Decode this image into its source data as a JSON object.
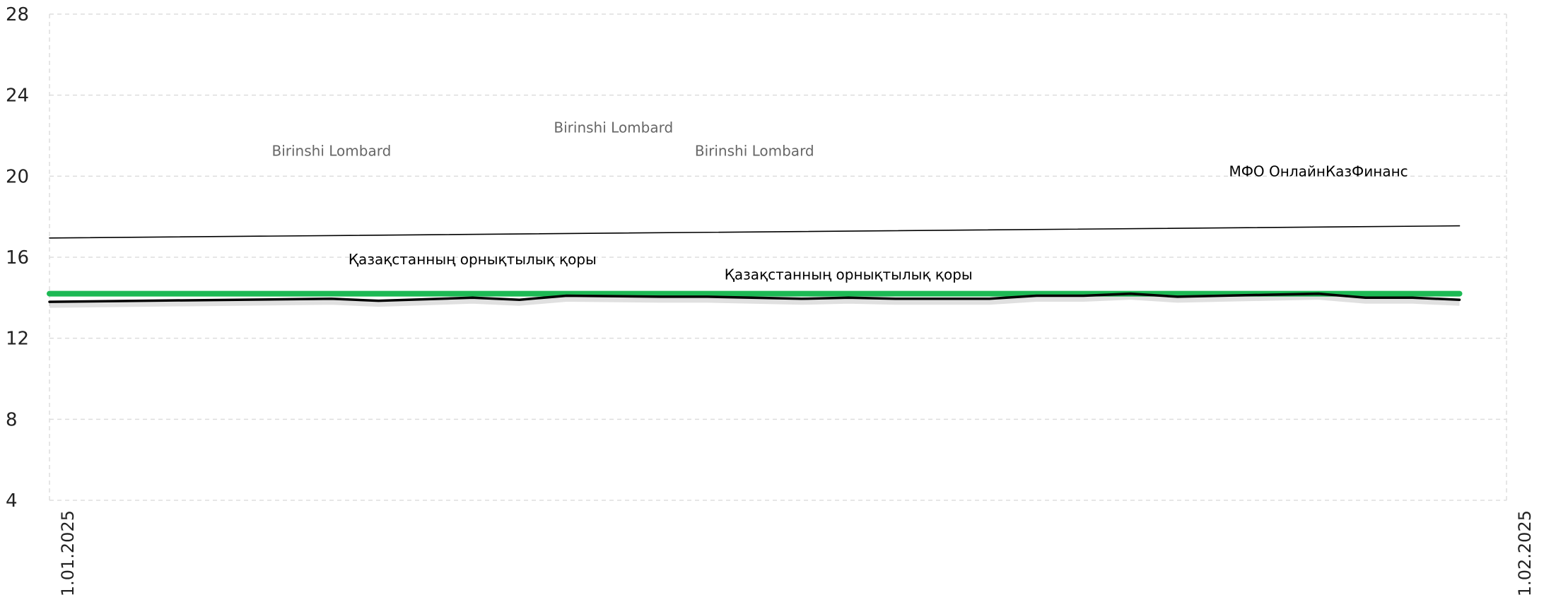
{
  "chart_data": {
    "type": "line",
    "ylim": [
      4,
      28
    ],
    "yticks": [
      4,
      8,
      12,
      16,
      20,
      24,
      28
    ],
    "xlim": [
      "01.01.2025",
      "01.02.2025"
    ],
    "xticks": [
      "01.01.2025",
      "01.02.2025"
    ],
    "grid": true,
    "series": [
      {
        "color": "#1db954",
        "x": [
          "01.01.2025",
          "31.01.2025"
        ],
        "values": [
          14.2,
          14.2
        ]
      },
      {
        "color": "#000000",
        "x": [
          "01.01.2025",
          "03.01.2025",
          "05.01.2025",
          "07.01.2025",
          "08.01.2025",
          "10.01.2025",
          "11.01.2025",
          "12.01.2025",
          "14.01.2025",
          "15.01.2025",
          "17.01.2025",
          "18.01.2025",
          "19.01.2025",
          "21.01.2025",
          "22.01.2025",
          "23.01.2025",
          "24.01.2025",
          "25.01.2025",
          "27.01.2025",
          "28.01.2025",
          "29.01.2025",
          "30.01.2025",
          "31.01.2025"
        ],
        "values": [
          13.8,
          13.85,
          13.9,
          13.95,
          13.85,
          14.0,
          13.9,
          14.1,
          14.05,
          14.05,
          13.95,
          14.0,
          13.95,
          13.95,
          14.1,
          14.1,
          14.2,
          14.05,
          14.15,
          14.2,
          14.0,
          14.0,
          13.9
        ]
      },
      {
        "color": "#000000",
        "x": [
          "01.01.2025",
          "31.01.2025"
        ],
        "values": [
          16.95,
          17.55
        ]
      }
    ],
    "annotations": [
      {
        "text": "Birinshi Lombard",
        "x": "07.01.2025",
        "y": 21.0,
        "color": "#666666"
      },
      {
        "text": "Birinshi Lombard",
        "x": "13.01.2025",
        "y": 22.15,
        "color": "#666666"
      },
      {
        "text": "Birinshi Lombard",
        "x": "16.01.2025",
        "y": 21.0,
        "color": "#666666"
      },
      {
        "text": "МФО ОнлайнКазФинанс",
        "x": "28.01.2025",
        "y": 20.0,
        "color": "#000000"
      },
      {
        "text": "Қазақстанның орнықтылық қоры",
        "x": "10.01.2025",
        "y": 15.65,
        "color": "#000000"
      },
      {
        "text": "Қазақстанның орнықтылық қоры",
        "x": "18.01.2025",
        "y": 14.9,
        "color": "#000000"
      }
    ]
  }
}
